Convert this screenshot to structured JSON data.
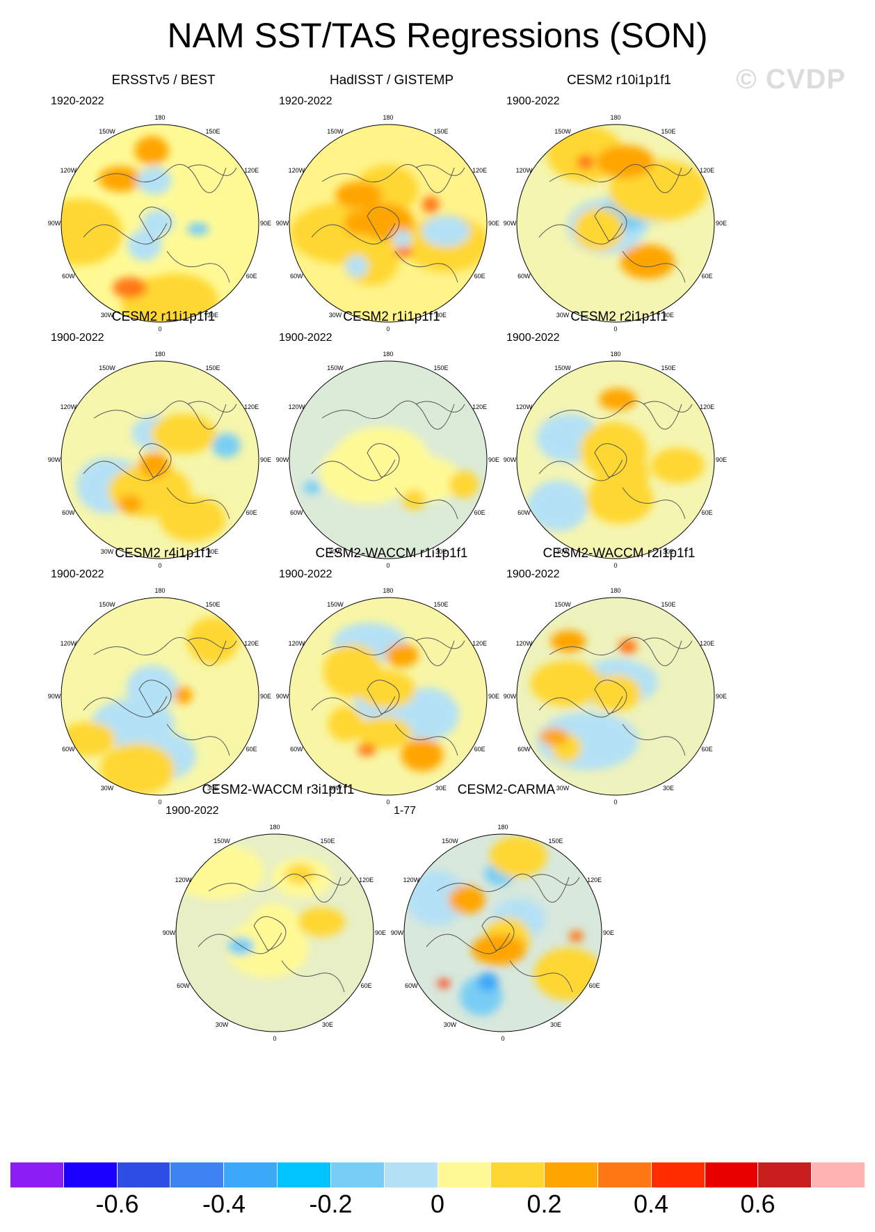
{
  "title": "NAM SST/TAS Regressions (SON)",
  "watermark": "© CVDP",
  "lon_labels": [
    "180",
    "150E",
    "120E",
    "90E",
    "60E",
    "30E",
    "0",
    "30W",
    "60W",
    "90W",
    "120W",
    "150W"
  ],
  "panels": [
    {
      "name": "ERSSTv5 / BEST",
      "period": "1920-2022",
      "tint": "#fffa96"
    },
    {
      "name": "HadISST / GISTEMP",
      "period": "1920-2022",
      "tint": "#fff38a"
    },
    {
      "name": "CESM2 r10i1p1f1",
      "period": "1900-2022",
      "tint": "#f4f5b0"
    },
    {
      "name": "CESM2 r11i1p1f1",
      "period": "1900-2022",
      "tint": "#f6f6ac"
    },
    {
      "name": "CESM2 r1i1p1f1",
      "period": "1900-2022",
      "tint": "#dcebd8"
    },
    {
      "name": "CESM2 r2i1p1f1",
      "period": "1900-2022",
      "tint": "#f5f5b2"
    },
    {
      "name": "CESM2 r4i1p1f1",
      "period": "1900-2022",
      "tint": "#f8f7a8"
    },
    {
      "name": "CESM2-WACCM r1i1p1f1",
      "period": "1900-2022",
      "tint": "#f8f6a6"
    },
    {
      "name": "CESM2-WACCM r2i1p1f1",
      "period": "1900-2022",
      "tint": "#eef2bc"
    },
    {
      "name": "CESM2-WACCM r3i1p1f1",
      "period": "1900-2022",
      "tint": "#e8efc6"
    },
    {
      "name": "CESM2-CARMA",
      "period": "1-77",
      "tint": "#d8e8dc"
    }
  ],
  "colorbar": {
    "colors": [
      "#8a1ef5",
      "#1a00ff",
      "#2e4fe6",
      "#3c82f0",
      "#3ca8f8",
      "#00c3ff",
      "#78cdf5",
      "#b4e1f5",
      "#fffa96",
      "#ffd732",
      "#ffa500",
      "#ff7814",
      "#ff2d00",
      "#e60000",
      "#c81e1e",
      "#ffb4b4"
    ],
    "labels": [
      "-0.6",
      "-0.4",
      "-0.2",
      "0",
      "0.2",
      "0.4",
      "0.6"
    ]
  }
}
